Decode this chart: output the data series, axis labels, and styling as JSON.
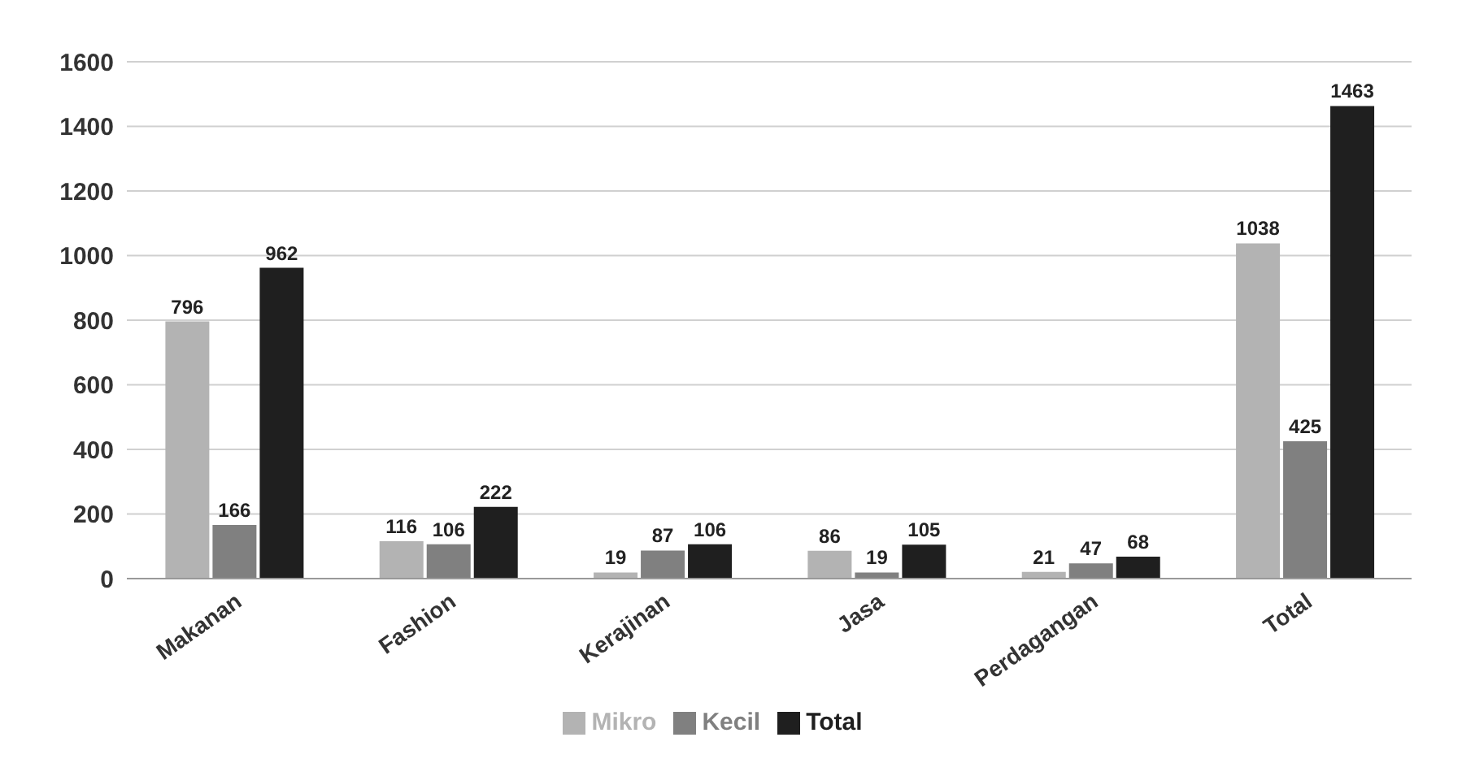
{
  "chart_data": {
    "type": "bar",
    "categories": [
      "Makanan",
      "Fashion",
      "Kerajinan",
      "Jasa",
      "Perdagangan",
      "Total"
    ],
    "series": [
      {
        "name": "Mikro",
        "color": "#b3b3b3",
        "values": [
          796,
          116,
          19,
          86,
          21,
          1038
        ]
      },
      {
        "name": "Kecil",
        "color": "#808080",
        "values": [
          166,
          106,
          87,
          19,
          47,
          425
        ]
      },
      {
        "name": "Total",
        "color": "#1f1f1f",
        "values": [
          962,
          222,
          106,
          105,
          68,
          1463
        ]
      }
    ],
    "ylim": [
      0,
      1600
    ],
    "yticks": [
      0,
      200,
      400,
      600,
      800,
      1000,
      1200,
      1400,
      1600
    ],
    "grid": "y",
    "legend": "bottom",
    "data_labels": true
  }
}
